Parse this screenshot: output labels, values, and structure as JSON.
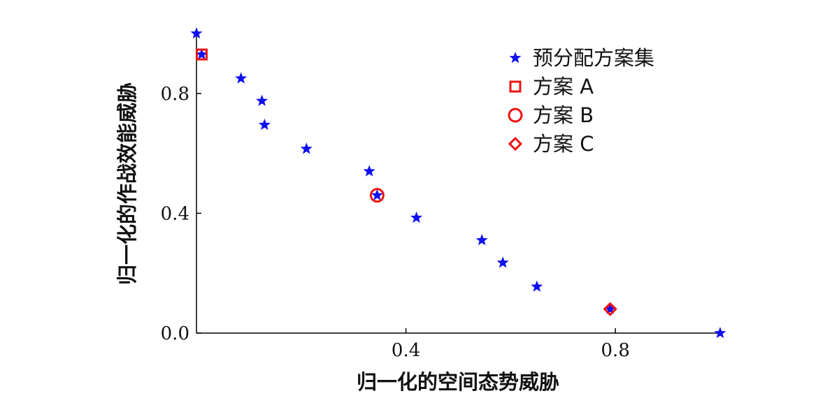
{
  "chart_data": {
    "type": "scatter",
    "xlabel": "归一化的空间态势威胁",
    "ylabel": "归一化的作战效能威胁",
    "xlim": [
      0.0,
      1.0
    ],
    "ylim": [
      0.0,
      1.0
    ],
    "xticks": [
      {
        "value": 0.4,
        "label": "0.4"
      },
      {
        "value": 0.8,
        "label": "0.8"
      }
    ],
    "yticks": [
      {
        "value": 0.0,
        "label": "0.0"
      },
      {
        "value": 0.4,
        "label": "0.4"
      },
      {
        "value": 0.8,
        "label": "0.8"
      }
    ],
    "grid": false,
    "legend_position": "top-right",
    "series": [
      {
        "name": "预分配方案集",
        "marker": "star",
        "color": "#1010ee",
        "points": [
          {
            "x": 0.0,
            "y": 1.0
          },
          {
            "x": 0.01,
            "y": 0.93
          },
          {
            "x": 0.085,
            "y": 0.85
          },
          {
            "x": 0.125,
            "y": 0.775
          },
          {
            "x": 0.13,
            "y": 0.695
          },
          {
            "x": 0.21,
            "y": 0.615
          },
          {
            "x": 0.33,
            "y": 0.54
          },
          {
            "x": 0.345,
            "y": 0.46
          },
          {
            "x": 0.42,
            "y": 0.385
          },
          {
            "x": 0.545,
            "y": 0.31
          },
          {
            "x": 0.585,
            "y": 0.235
          },
          {
            "x": 0.65,
            "y": 0.155
          },
          {
            "x": 0.79,
            "y": 0.08
          },
          {
            "x": 1.0,
            "y": 0.0
          }
        ]
      },
      {
        "name": "方案A",
        "marker": "square",
        "color": "#ee1111",
        "points": [
          {
            "x": 0.01,
            "y": 0.93
          }
        ]
      },
      {
        "name": "方案B",
        "marker": "circle",
        "color": "#ee1111",
        "points": [
          {
            "x": 0.345,
            "y": 0.46
          }
        ]
      },
      {
        "name": "方案C",
        "marker": "diamond",
        "color": "#ee1111",
        "points": [
          {
            "x": 0.79,
            "y": 0.08
          }
        ]
      }
    ],
    "legend": [
      {
        "label": "预分配方案集",
        "marker": "star",
        "color": "#1010ee"
      },
      {
        "label": "方案 A",
        "marker": "square",
        "color": "#ee1111"
      },
      {
        "label": "方案 B",
        "marker": "circle",
        "color": "#ee1111"
      },
      {
        "label": "方案 C",
        "marker": "diamond",
        "color": "#ee1111"
      }
    ]
  }
}
